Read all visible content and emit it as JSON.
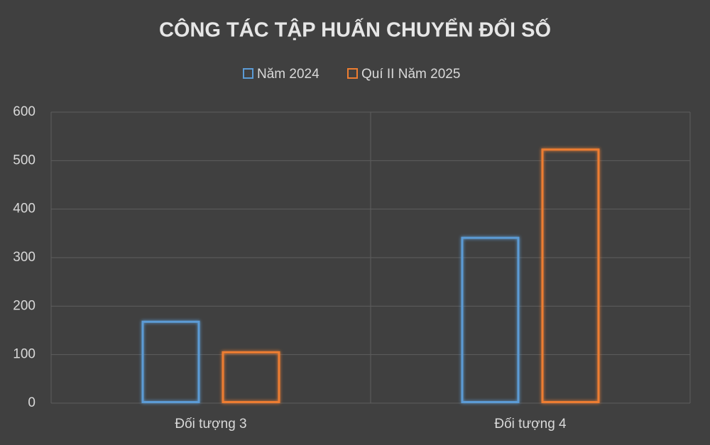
{
  "chart_data": {
    "type": "bar",
    "title": "CÔNG TÁC TẬP HUẤN CHUYỂN ĐỔI SỐ",
    "categories": [
      "Đối tượng 3",
      "Đối tượng 4"
    ],
    "series": [
      {
        "name": "Năm 2024",
        "color": "#5b9bd5",
        "values": [
          170,
          343
        ]
      },
      {
        "name": "Quí II Năm 2025",
        "color": "#ed7d31",
        "values": [
          107,
          525
        ]
      }
    ],
    "ylim": [
      0,
      600
    ],
    "yticks": [
      0,
      100,
      200,
      300,
      400,
      500,
      600
    ],
    "grid": true,
    "legend": "top"
  }
}
